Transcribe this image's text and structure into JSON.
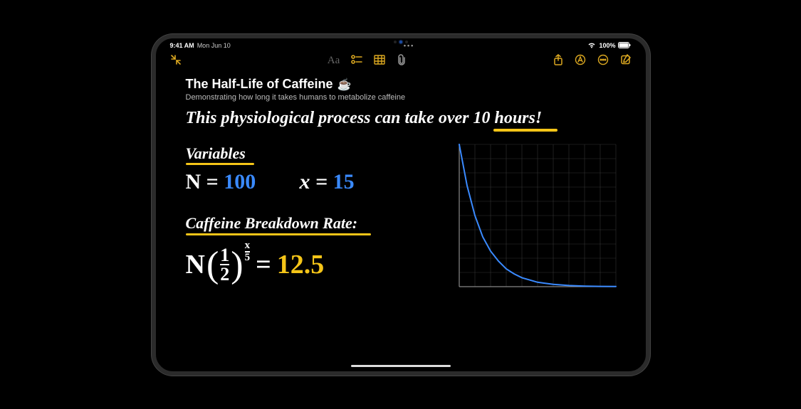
{
  "status": {
    "time": "9:41 AM",
    "date": "Mon Jun 10",
    "battery_pct": "100%"
  },
  "note": {
    "title": "The Half-Life of Caffeine",
    "title_emoji": "☕",
    "subtitle": "Demonstrating how long it takes humans to metabolize caffeine"
  },
  "handwriting": {
    "headline_prefix": "This physiological process can take over ",
    "headline_emph": "10 hours",
    "headline_bang": "!",
    "section_variables": "Variables",
    "var_N_label": "N =",
    "var_N_value": "100",
    "var_X_label": "x =",
    "var_X_value": "15",
    "section_rate": "Caffeine Breakdown Rate:",
    "formula_N": "N",
    "formula_half_num": "1",
    "formula_half_den": "2",
    "formula_exp_num": "x",
    "formula_exp_den": "5",
    "formula_equals": "=",
    "formula_result": "12.5"
  },
  "colors": {
    "white": "#ffffff",
    "yellow": "#f5c518",
    "blue": "#3a8aff",
    "toolbar_gold": "#dca820",
    "grid": "#333333",
    "curve": "#3a8aff",
    "axis": "#888888",
    "bg": "#000000"
  },
  "graph": {
    "type": "line",
    "xlim": [
      0,
      10
    ],
    "ylim": [
      0,
      10
    ],
    "grid_step": 1,
    "curve_points": [
      [
        0,
        10
      ],
      [
        0.5,
        7.1
      ],
      [
        1,
        5
      ],
      [
        1.5,
        3.5
      ],
      [
        2,
        2.5
      ],
      [
        2.5,
        1.8
      ],
      [
        3,
        1.25
      ],
      [
        3.5,
        0.9
      ],
      [
        4,
        0.63
      ],
      [
        5,
        0.31
      ],
      [
        6,
        0.16
      ],
      [
        7,
        0.08
      ],
      [
        8,
        0.04
      ],
      [
        9,
        0.02
      ],
      [
        10,
        0.01
      ]
    ],
    "grid_color": "#333333",
    "axis_color": "#888888",
    "curve_color": "#3a8aff",
    "curve_width": 2
  },
  "fonts": {
    "hand_headline": 24,
    "hand_section": 22,
    "hand_var": 28,
    "hand_formula": 34,
    "hand_exp": 16
  }
}
